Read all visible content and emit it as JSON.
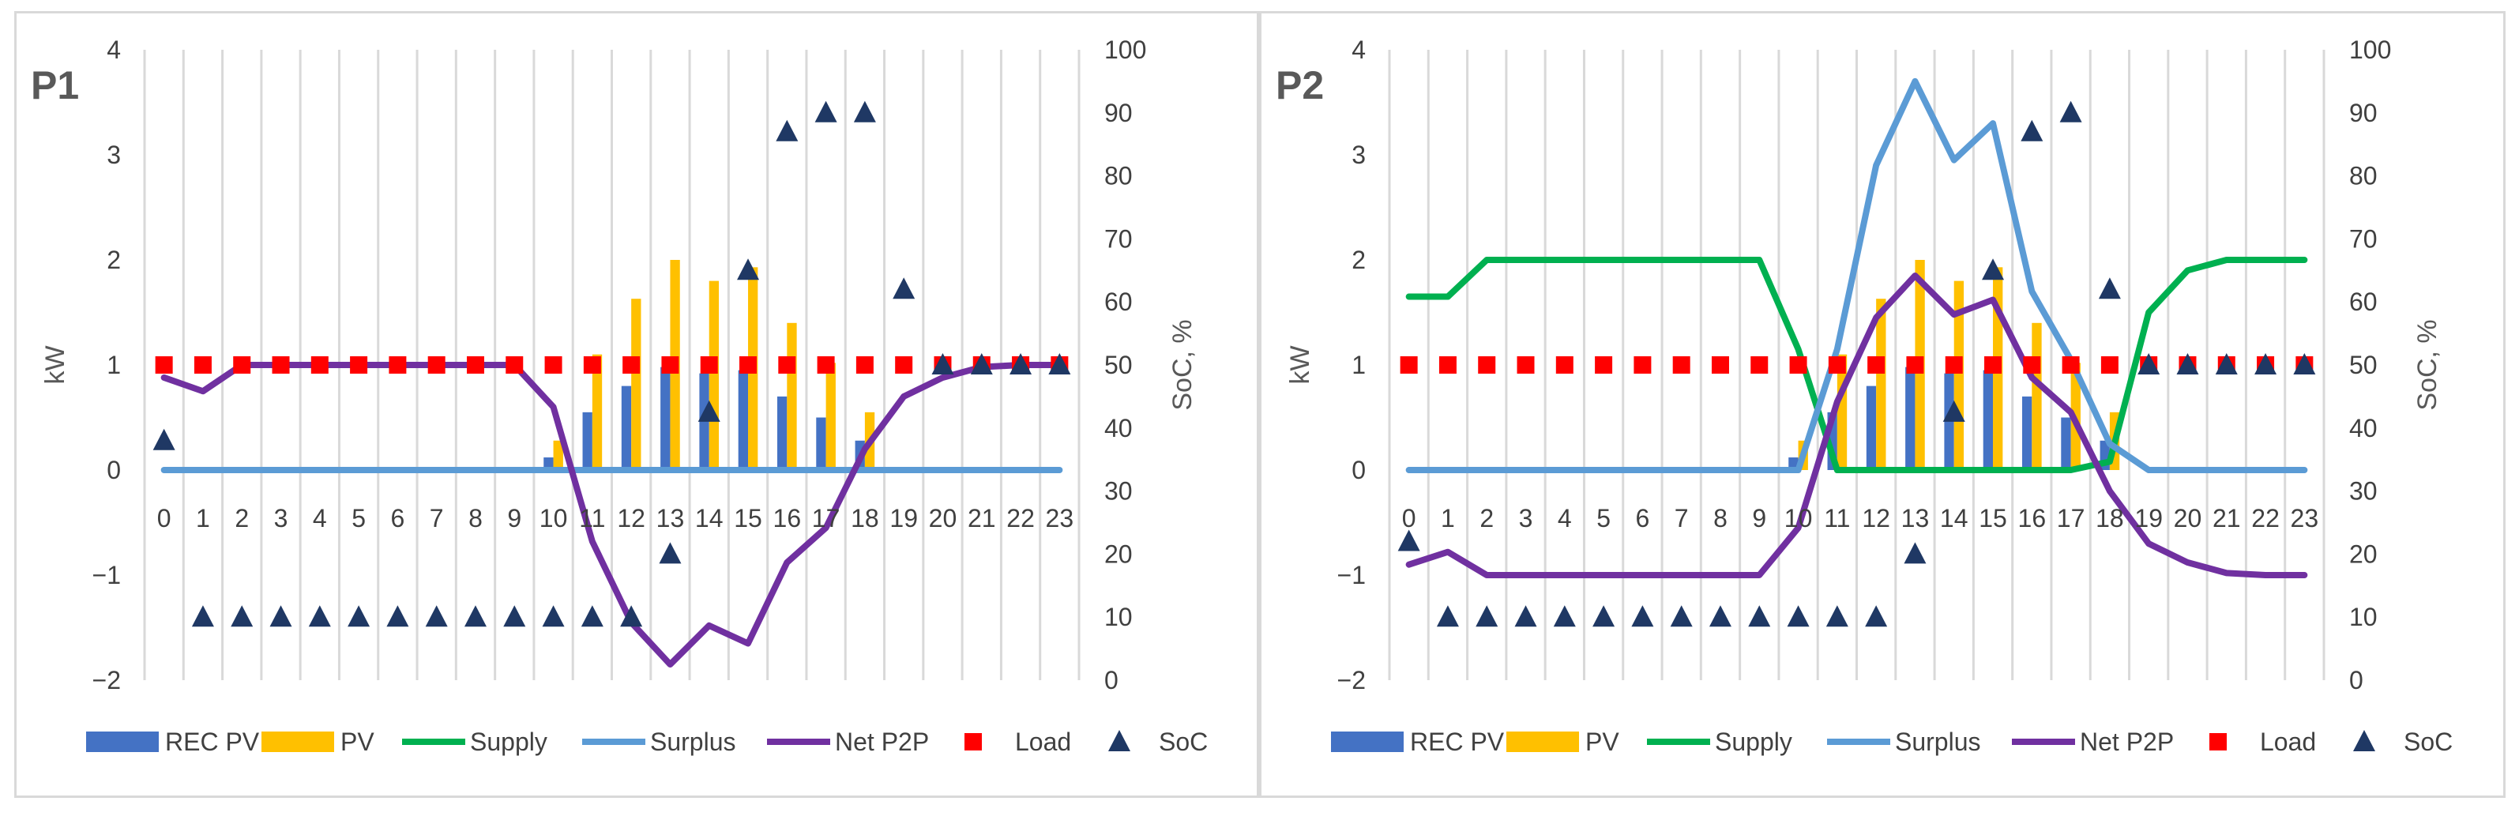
{
  "chart_data": [
    {
      "type": "combo",
      "title": "P1",
      "ylabel_left": "kW",
      "ylabel_right": "SoC, %",
      "ylim_left": [
        -2,
        4
      ],
      "yticks_left": [
        "4",
        "3",
        "2",
        "1",
        "0",
        "−1",
        "−2"
      ],
      "ylim_right": [
        0,
        100
      ],
      "yticks_right": [
        "100",
        "90",
        "80",
        "70",
        "60",
        "50",
        "40",
        "30",
        "20",
        "10",
        "0"
      ],
      "categories": [
        "0",
        "1",
        "2",
        "3",
        "4",
        "5",
        "6",
        "7",
        "8",
        "9",
        "10",
        "11",
        "12",
        "13",
        "14",
        "15",
        "16",
        "17",
        "18",
        "19",
        "20",
        "21",
        "22",
        "23"
      ],
      "series": [
        {
          "name": "REC PV",
          "kind": "bar",
          "axis": "left",
          "color": "#4472c4",
          "values": [
            0,
            0,
            0,
            0,
            0,
            0,
            0,
            0,
            0,
            0,
            0.12,
            0.55,
            0.8,
            0.98,
            0.92,
            0.95,
            0.7,
            0.5,
            0.28,
            0,
            0,
            0,
            0,
            0
          ]
        },
        {
          "name": "PV",
          "kind": "bar",
          "axis": "left",
          "color": "#ffc000",
          "values": [
            0,
            0,
            0,
            0,
            0,
            0,
            0,
            0,
            0,
            0,
            0.28,
            1.1,
            1.63,
            2.0,
            1.8,
            1.93,
            1.4,
            1.02,
            0.55,
            0,
            0,
            0,
            0,
            0
          ]
        },
        {
          "name": "Supply",
          "kind": "line",
          "axis": "left",
          "color": "#00b050",
          "values": [
            null,
            null,
            null,
            null,
            null,
            null,
            null,
            null,
            null,
            null,
            null,
            null,
            null,
            null,
            null,
            null,
            null,
            null,
            null,
            null,
            null,
            null,
            null,
            null
          ]
        },
        {
          "name": "Surplus",
          "kind": "line",
          "axis": "left",
          "color": "#5b9bd5",
          "values": [
            0,
            0,
            0,
            0,
            0,
            0,
            0,
            0,
            0,
            0,
            0,
            0,
            0,
            0,
            0,
            0,
            0,
            0,
            0,
            0,
            0,
            0,
            0,
            0
          ]
        },
        {
          "name": "Net P2P",
          "kind": "line",
          "axis": "left",
          "color": "#7030a0",
          "values": [
            0.88,
            0.75,
            1.0,
            1.0,
            1.0,
            1.0,
            1.0,
            1.0,
            1.0,
            1.0,
            0.6,
            -0.68,
            -1.45,
            -1.85,
            -1.48,
            -1.65,
            -0.88,
            -0.55,
            0.2,
            0.7,
            0.88,
            0.98,
            1.0,
            1.0
          ]
        },
        {
          "name": "Load",
          "kind": "marker",
          "axis": "left",
          "color": "#ff0000",
          "values": [
            1,
            1,
            1,
            1,
            1,
            1,
            1,
            1,
            1,
            1,
            1,
            1,
            1,
            1,
            1,
            1,
            1,
            1,
            1,
            1,
            1,
            1,
            1,
            1
          ]
        },
        {
          "name": "SoC",
          "kind": "marker",
          "axis": "right",
          "color": "#1f3864",
          "values": [
            38,
            10,
            10,
            10,
            10,
            10,
            10,
            10,
            10,
            10,
            10,
            10,
            10,
            20,
            42.5,
            65,
            87,
            90,
            90,
            62,
            50,
            50,
            50,
            50
          ]
        }
      ],
      "legend": [
        "REC PV",
        "PV",
        "Supply",
        "Surplus",
        "Net P2P",
        "Load",
        "SoC"
      ]
    },
    {
      "type": "combo",
      "title": "P2",
      "ylabel_left": "kW",
      "ylabel_right": "SoC, %",
      "ylim_left": [
        -2,
        4
      ],
      "yticks_left": [
        "4",
        "3",
        "2",
        "1",
        "0",
        "−1",
        "−2"
      ],
      "ylim_right": [
        0,
        100
      ],
      "yticks_right": [
        "100",
        "90",
        "80",
        "70",
        "60",
        "50",
        "40",
        "30",
        "20",
        "10",
        "0"
      ],
      "categories": [
        "0",
        "1",
        "2",
        "3",
        "4",
        "5",
        "6",
        "7",
        "8",
        "9",
        "10",
        "11",
        "12",
        "13",
        "14",
        "15",
        "16",
        "17",
        "18",
        "19",
        "20",
        "21",
        "22",
        "23"
      ],
      "series": [
        {
          "name": "REC PV",
          "kind": "bar",
          "axis": "left",
          "color": "#4472c4",
          "values": [
            0,
            0,
            0,
            0,
            0,
            0,
            0,
            0,
            0,
            0,
            0.12,
            0.55,
            0.8,
            0.98,
            0.92,
            0.95,
            0.7,
            0.5,
            0.28,
            0,
            0,
            0,
            0,
            0
          ]
        },
        {
          "name": "PV",
          "kind": "bar",
          "axis": "left",
          "color": "#ffc000",
          "values": [
            0,
            0,
            0,
            0,
            0,
            0,
            0,
            0,
            0,
            0,
            0.28,
            1.1,
            1.63,
            2.0,
            1.8,
            1.93,
            1.4,
            1.02,
            0.55,
            0,
            0,
            0,
            0,
            0
          ]
        },
        {
          "name": "Supply",
          "kind": "line",
          "axis": "left",
          "color": "#00b050",
          "values": [
            1.65,
            1.65,
            2.0,
            2.0,
            2.0,
            2.0,
            2.0,
            2.0,
            2.0,
            2.0,
            1.15,
            0,
            0,
            0,
            0,
            0,
            0,
            0,
            0.08,
            1.5,
            1.9,
            2.0,
            2.0,
            2.0
          ]
        },
        {
          "name": "Surplus",
          "kind": "line",
          "axis": "left",
          "color": "#5b9bd5",
          "values": [
            0,
            0,
            0,
            0,
            0,
            0,
            0,
            0,
            0,
            0,
            0,
            1.15,
            2.9,
            3.7,
            2.95,
            3.3,
            1.7,
            1.05,
            0.25,
            0,
            0,
            0,
            0,
            0
          ]
        },
        {
          "name": "Net P2P",
          "kind": "line",
          "axis": "left",
          "color": "#7030a0",
          "values": [
            -0.9,
            -0.78,
            -1.0,
            -1.0,
            -1.0,
            -1.0,
            -1.0,
            -1.0,
            -1.0,
            -1.0,
            -0.55,
            0.65,
            1.45,
            1.85,
            1.48,
            1.62,
            0.88,
            0.55,
            -0.2,
            -0.7,
            -0.88,
            -0.98,
            -1.0,
            -1.0
          ]
        },
        {
          "name": "Load",
          "kind": "marker",
          "axis": "left",
          "color": "#ff0000",
          "values": [
            1,
            1,
            1,
            1,
            1,
            1,
            1,
            1,
            1,
            1,
            1,
            1,
            1,
            1,
            1,
            1,
            1,
            1,
            1,
            1,
            1,
            1,
            1,
            1
          ]
        },
        {
          "name": "SoC",
          "kind": "marker",
          "axis": "right",
          "color": "#1f3864",
          "values": [
            22,
            10,
            10,
            10,
            10,
            10,
            10,
            10,
            10,
            10,
            10,
            10,
            10,
            20,
            42.5,
            65,
            87,
            90,
            62,
            50,
            50,
            50,
            50,
            50
          ]
        }
      ],
      "legend": [
        "REC PV",
        "PV",
        "Supply",
        "Surplus",
        "Net P2P",
        "Load",
        "SoC"
      ]
    }
  ]
}
